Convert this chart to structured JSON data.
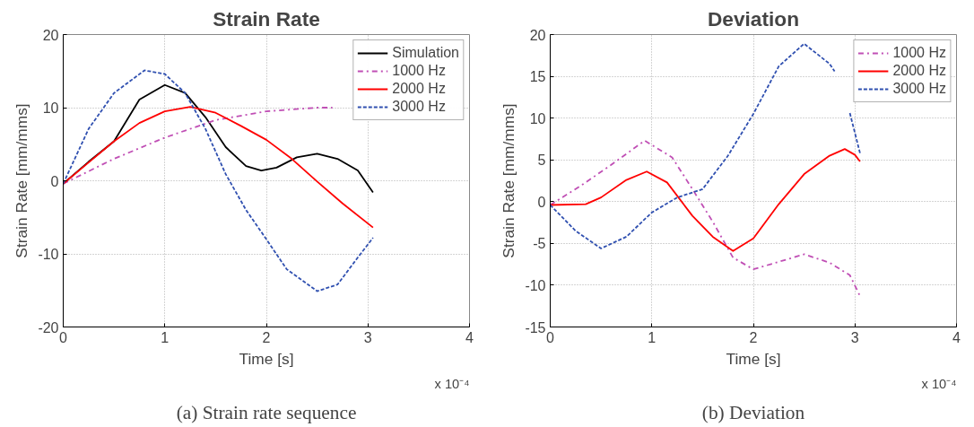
{
  "chart_data": [
    {
      "type": "line",
      "title": "Strain Rate",
      "xlabel": "Time [s]",
      "ylabel": "Strain Rate [mm/mms]",
      "xlim": [
        0,
        4
      ],
      "xticks": [
        0,
        1,
        2,
        3,
        4
      ],
      "ylim": [
        -20,
        20
      ],
      "yticks": [
        -20,
        -10,
        0,
        10,
        20
      ],
      "grid": true,
      "legend": "top right",
      "annotations": [
        "x 10⁻⁴",
        "(a) Strain rate sequence"
      ],
      "series": [
        {
          "name": "Simulation",
          "color": "#000000",
          "line_style": "solid",
          "x": [
            0,
            0.25,
            0.5,
            0.75,
            1.0,
            1.2,
            1.4,
            1.6,
            1.8,
            1.95,
            2.1,
            2.3,
            2.5,
            2.7,
            2.9,
            3.05
          ],
          "values": [
            -0.4,
            2.6,
            5.4,
            11.1,
            13.1,
            12,
            8.7,
            4.6,
            2.0,
            1.4,
            1.8,
            3.2,
            3.7,
            3.0,
            1.4,
            -1.6
          ]
        },
        {
          "name": "1000 Hz",
          "color": "#c04fb5",
          "line_style": "dashdot",
          "x": [
            0,
            0.5,
            1.0,
            1.5,
            2.0,
            2.5,
            2.65
          ],
          "values": [
            -0.4,
            3.0,
            5.9,
            8.3,
            9.5,
            10,
            10
          ]
        },
        {
          "name": "2000 Hz",
          "color": "#ff0000",
          "line_style": "solid",
          "x": [
            0,
            0.25,
            0.5,
            0.75,
            1.0,
            1.25,
            1.5,
            1.75,
            2.0,
            2.25,
            2.5,
            2.75,
            3.05
          ],
          "values": [
            -0.4,
            2.5,
            5.4,
            7.9,
            9.5,
            10.1,
            9.3,
            7.5,
            5.6,
            3.0,
            -0.1,
            -3.1,
            -6.4
          ]
        },
        {
          "name": "3000 Hz",
          "color": "#3050b0",
          "line_style": "dashed",
          "x": [
            0,
            0.25,
            0.5,
            0.8,
            1.0,
            1.2,
            1.4,
            1.6,
            1.8,
            2.0,
            2.2,
            2.5,
            2.7,
            2.9,
            3.05
          ],
          "values": [
            -0.4,
            7.1,
            12,
            15.1,
            14.6,
            12,
            7.1,
            0.9,
            -4,
            -8,
            -12.1,
            -15.1,
            -14.2,
            -10.5,
            -7.8
          ]
        }
      ]
    },
    {
      "type": "line",
      "title": "Deviation",
      "xlabel": "Time [s]",
      "ylabel": "Strain Rate [mm/mms]",
      "xlim": [
        0,
        4
      ],
      "xticks": [
        0,
        1,
        2,
        3,
        4
      ],
      "ylim": [
        -15,
        20
      ],
      "yticks": [
        -15,
        -10,
        -5,
        0,
        5,
        10,
        15,
        20
      ],
      "grid": true,
      "legend": "top right",
      "annotations": [
        "x 10⁻⁴",
        "(b) Deviation"
      ],
      "series": [
        {
          "name": "1000 Hz",
          "color": "#c04fb5",
          "line_style": "dashdot",
          "x": [
            0,
            0.3,
            0.6,
            0.93,
            1.2,
            1.4,
            1.6,
            1.8,
            2.0,
            2.25,
            2.5,
            2.75,
            2.95,
            3.05
          ],
          "values": [
            -0.4,
            1.9,
            4.4,
            7.3,
            5.3,
            1.5,
            -2.4,
            -6.7,
            -8.1,
            -7.2,
            -6.3,
            -7.3,
            -8.8,
            -11.3
          ]
        },
        {
          "name": "2000 Hz",
          "color": "#ff0000",
          "line_style": "solid",
          "x": [
            0,
            0.35,
            0.5,
            0.75,
            0.95,
            1.15,
            1.4,
            1.6,
            1.8,
            2.0,
            2.25,
            2.5,
            2.75,
            2.9,
            3.0,
            3.05
          ],
          "values": [
            -0.4,
            -0.3,
            0.5,
            2.6,
            3.6,
            2.3,
            -1.7,
            -4.2,
            -5.9,
            -4.4,
            -0.3,
            3.3,
            5.5,
            6.3,
            5.6,
            4.8
          ]
        },
        {
          "name": "3000 Hz",
          "color": "#3050b0",
          "line_style": "dashed",
          "x": [
            0,
            0.25,
            0.5,
            0.75,
            1.0,
            1.25,
            1.5,
            1.75,
            2.0,
            2.25,
            2.5,
            2.75,
            2.8,
            2.87,
            2.95,
            3.05
          ],
          "values": [
            -0.4,
            -3.5,
            -5.6,
            -4.2,
            -1.3,
            0.5,
            1.5,
            5.5,
            10.5,
            16.2,
            18.9,
            16.5,
            15.6,
            null,
            10.6,
            5.8
          ]
        }
      ]
    }
  ]
}
